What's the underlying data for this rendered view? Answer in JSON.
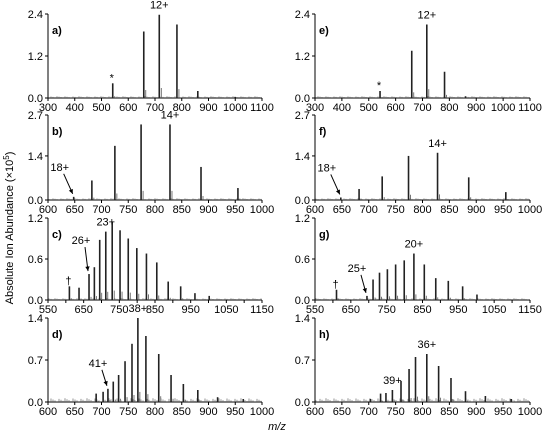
{
  "figure": {
    "ylabel_main": "Absolute Ion Abundance (×10",
    "ylabel_sup": "5",
    "ylabel_end": ")",
    "xlabel": "m/z"
  },
  "chart_data": [
    {
      "id": "a",
      "letter": "a)",
      "type": "bar",
      "xlim": [
        300,
        1100
      ],
      "ylim": [
        0,
        2.4
      ],
      "xticks": [
        300,
        400,
        500,
        600,
        700,
        800,
        900,
        1000,
        1100
      ],
      "yticks": [
        0.0,
        1.2,
        2.4
      ],
      "ytick_labels": [
        "0.0",
        "1.2",
        "2.4"
      ],
      "peaks": [
        [
          542,
          0.42
        ],
        [
          658,
          1.9
        ],
        [
          716,
          2.38
        ],
        [
          782,
          2.1
        ],
        [
          860,
          0.2
        ],
        [
          1000,
          0.03
        ]
      ],
      "annotations": [
        {
          "text": "12+",
          "x": 716,
          "y": 2.38,
          "type": "label"
        },
        {
          "text": "*",
          "x": 542,
          "y": 0.42,
          "type": "marker"
        }
      ]
    },
    {
      "id": "e",
      "letter": "e)",
      "type": "bar",
      "xlim": [
        300,
        1100
      ],
      "ylim": [
        0,
        2.4
      ],
      "xticks": [
        300,
        400,
        500,
        600,
        700,
        800,
        900,
        1000,
        1100
      ],
      "yticks": [
        0.0,
        1.2,
        2.4
      ],
      "ytick_labels": [
        "0.0",
        "1.2",
        "2.4"
      ],
      "peaks": [
        [
          542,
          0.2
        ],
        [
          660,
          1.35
        ],
        [
          716,
          2.1
        ],
        [
          782,
          0.75
        ],
        [
          860,
          0.05
        ]
      ],
      "annotations": [
        {
          "text": "12+",
          "x": 716,
          "y": 2.1,
          "type": "label"
        },
        {
          "text": "*",
          "x": 542,
          "y": 0.2,
          "type": "marker"
        }
      ]
    },
    {
      "id": "b",
      "letter": "b)",
      "type": "bar",
      "xlim": [
        600,
        1000
      ],
      "ylim": [
        0,
        2.7
      ],
      "xticks": [
        600,
        650,
        700,
        750,
        800,
        850,
        900,
        950,
        1000
      ],
      "yticks": [
        0.0,
        1.4,
        2.7
      ],
      "ytick_labels": [
        "0.0",
        "1.4",
        "2.7"
      ],
      "peaks": [
        [
          648,
          0.1
        ],
        [
          682,
          0.62
        ],
        [
          725,
          1.72
        ],
        [
          774,
          2.4
        ],
        [
          828,
          2.4
        ],
        [
          886,
          1.05
        ],
        [
          955,
          0.38
        ]
      ],
      "annotations": [
        {
          "text": "14+",
          "x": 828,
          "y": 2.4,
          "type": "label"
        },
        {
          "text": "18+",
          "x": 648,
          "y": 0.1,
          "type": "arrow"
        }
      ]
    },
    {
      "id": "f",
      "letter": "f)",
      "type": "bar",
      "xlim": [
        600,
        1000
      ],
      "ylim": [
        0,
        2.7
      ],
      "xticks": [
        600,
        650,
        700,
        750,
        800,
        850,
        900,
        950,
        1000
      ],
      "yticks": [
        0.0,
        1.4,
        2.7
      ],
      "ytick_labels": [
        "0.0",
        "1.4",
        "2.7"
      ],
      "peaks": [
        [
          648,
          0.08
        ],
        [
          682,
          0.35
        ],
        [
          725,
          0.75
        ],
        [
          774,
          1.4
        ],
        [
          828,
          1.5
        ],
        [
          886,
          0.72
        ],
        [
          955,
          0.25
        ]
      ],
      "annotations": [
        {
          "text": "14+",
          "x": 828,
          "y": 1.5,
          "type": "label"
        },
        {
          "text": "18+",
          "x": 648,
          "y": 0.08,
          "type": "arrow"
        }
      ]
    },
    {
      "id": "c",
      "letter": "c)",
      "type": "bar",
      "xlim": [
        550,
        1150
      ],
      "ylim": [
        0,
        1.2
      ],
      "xticks": [
        550,
        600,
        650,
        700,
        750,
        800,
        850,
        900,
        950,
        1000,
        1050,
        1100,
        1150
      ],
      "xtick_labels": [
        "550",
        "",
        "650",
        "",
        "750",
        "",
        "850",
        "",
        "950",
        "",
        "1050",
        "",
        "1150"
      ],
      "yticks": [
        0.0,
        0.6,
        1.2
      ],
      "ytick_labels": [
        "0.0",
        "0.6",
        "1.2"
      ],
      "peaks": [
        [
          610,
          0.2
        ],
        [
          637,
          0.18
        ],
        [
          665,
          0.38
        ],
        [
          680,
          0.48
        ],
        [
          695,
          0.88
        ],
        [
          712,
          1.0
        ],
        [
          730,
          1.15
        ],
        [
          752,
          1.02
        ],
        [
          775,
          0.9
        ],
        [
          799,
          0.76
        ],
        [
          826,
          0.68
        ],
        [
          855,
          0.55
        ],
        [
          887,
          0.27
        ],
        [
          922,
          0.2
        ],
        [
          962,
          0.1
        ],
        [
          1002,
          0.06
        ]
      ],
      "annotations": [
        {
          "text": "23+",
          "x": 712,
          "y": 1.0,
          "type": "label"
        },
        {
          "text": "26+",
          "x": 665,
          "y": 0.38,
          "type": "arrow"
        },
        {
          "text": "†",
          "x": 610,
          "y": 0.2,
          "type": "marker"
        }
      ]
    },
    {
      "id": "g",
      "letter": "g)",
      "type": "bar",
      "xlim": [
        550,
        1150
      ],
      "ylim": [
        0,
        1.2
      ],
      "xticks": [
        550,
        600,
        650,
        700,
        750,
        800,
        850,
        900,
        950,
        1000,
        1050,
        1100,
        1150
      ],
      "xtick_labels": [
        "550",
        "",
        "650",
        "",
        "750",
        "",
        "850",
        "",
        "950",
        "",
        "1050",
        "",
        "1150"
      ],
      "yticks": [
        0.0,
        0.6,
        1.2
      ],
      "ytick_labels": [
        "0.0",
        "0.6",
        "1.2"
      ],
      "peaks": [
        [
          610,
          0.15
        ],
        [
          695,
          0.06
        ],
        [
          712,
          0.3
        ],
        [
          730,
          0.4
        ],
        [
          752,
          0.45
        ],
        [
          775,
          0.52
        ],
        [
          799,
          0.58
        ],
        [
          826,
          0.68
        ],
        [
          855,
          0.52
        ],
        [
          887,
          0.32
        ],
        [
          922,
          0.28
        ],
        [
          962,
          0.2
        ],
        [
          1002,
          0.08
        ]
      ],
      "annotations": [
        {
          "text": "20+",
          "x": 826,
          "y": 0.68,
          "type": "label"
        },
        {
          "text": "25+",
          "x": 695,
          "y": 0.06,
          "type": "arrow"
        },
        {
          "text": "†",
          "x": 610,
          "y": 0.15,
          "type": "marker"
        }
      ]
    },
    {
      "id": "d",
      "letter": "d)",
      "type": "bar",
      "xlim": [
        600,
        1000
      ],
      "ylim": [
        0,
        1.4
      ],
      "xticks": [
        600,
        650,
        700,
        750,
        800,
        850,
        900,
        950,
        1000
      ],
      "yticks": [
        0.0,
        0.7,
        1.4
      ],
      "ytick_labels": [
        "0.0",
        "0.7",
        "1.4"
      ],
      "peaks": [
        [
          690,
          0.14
        ],
        [
          703,
          0.17
        ],
        [
          712,
          0.22
        ],
        [
          722,
          0.34
        ],
        [
          732,
          0.45
        ],
        [
          744,
          0.68
        ],
        [
          757,
          0.97
        ],
        [
          768,
          1.4
        ],
        [
          783,
          1.1
        ],
        [
          807,
          0.8
        ],
        [
          830,
          0.45
        ],
        [
          853,
          0.3
        ],
        [
          880,
          0.2
        ],
        [
          917,
          0.08
        ],
        [
          965,
          0.05
        ]
      ],
      "annotations": [
        {
          "text": "38+",
          "x": 768,
          "y": 1.4,
          "type": "label"
        },
        {
          "text": "41+",
          "x": 712,
          "y": 0.22,
          "type": "arrow"
        }
      ]
    },
    {
      "id": "h",
      "letter": "h)",
      "type": "bar",
      "xlim": [
        600,
        1000
      ],
      "ylim": [
        0,
        1.4
      ],
      "xticks": [
        600,
        650,
        700,
        750,
        800,
        850,
        900,
        950,
        1000
      ],
      "yticks": [
        0.0,
        0.7,
        1.4
      ],
      "ytick_labels": [
        "0.0",
        "0.7",
        "1.4"
      ],
      "peaks": [
        [
          703,
          0.05
        ],
        [
          722,
          0.14
        ],
        [
          732,
          0.15
        ],
        [
          744,
          0.2
        ],
        [
          760,
          0.35
        ],
        [
          775,
          0.55
        ],
        [
          787,
          0.75
        ],
        [
          808,
          0.8
        ],
        [
          830,
          0.6
        ],
        [
          853,
          0.4
        ],
        [
          880,
          0.18
        ],
        [
          917,
          0.1
        ],
        [
          965,
          0.05
        ]
      ],
      "annotations": [
        {
          "text": "36+",
          "x": 808,
          "y": 0.8,
          "type": "label"
        },
        {
          "text": "39+",
          "x": 744,
          "y": 0.2,
          "type": "label"
        }
      ]
    }
  ]
}
